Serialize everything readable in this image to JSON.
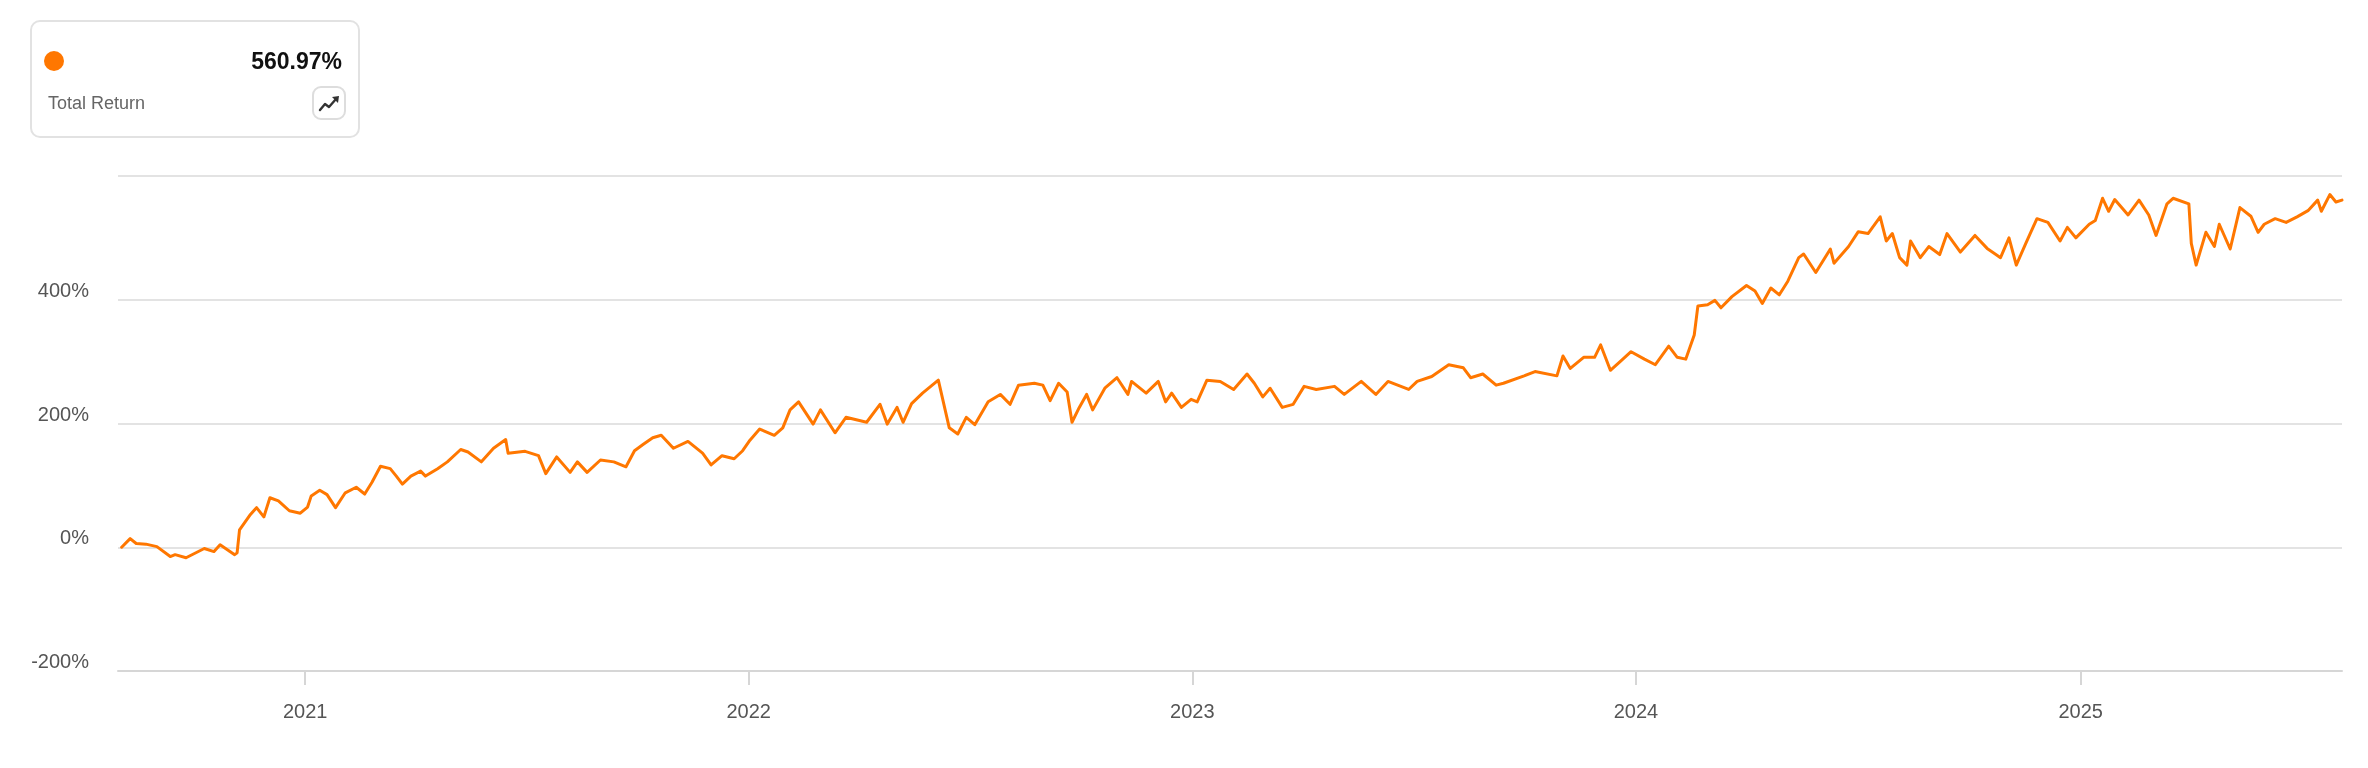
{
  "chart_data": {
    "type": "line",
    "color": "#ff7700",
    "annotations": [
      "560.97%",
      "Total Return"
    ],
    "xlim": [
      "2020-07-31",
      "2025-08-04"
    ],
    "xticks": [
      {
        "value": "2021-01-01",
        "label": "2021"
      },
      {
        "value": "2022-01-01",
        "label": "2022"
      },
      {
        "value": "2023-01-01",
        "label": "2023"
      },
      {
        "value": "2024-01-01",
        "label": "2024"
      },
      {
        "value": "2025-01-01",
        "label": "2025"
      }
    ],
    "ylim": [
      -200,
      600
    ],
    "yticks": [
      {
        "value": -200,
        "label": "-200%"
      },
      {
        "value": 0,
        "label": "0%"
      },
      {
        "value": 200,
        "label": "200%"
      },
      {
        "value": 400,
        "label": "400%"
      },
      {
        "value": 600,
        "label": null
      }
    ],
    "grid": "y",
    "x": [
      "2020-08-03",
      "2020-08-10",
      "2020-08-15",
      "2020-08-23",
      "2020-09-01",
      "2020-09-12",
      "2020-09-16",
      "2020-09-25",
      "2020-10-10",
      "2020-10-18",
      "2020-10-23",
      "2020-11-04",
      "2020-11-06",
      "2020-11-08",
      "2020-11-17",
      "2020-11-22",
      "2020-11-28",
      "2020-12-03",
      "2020-12-10",
      "2020-12-19",
      "2020-12-28",
      "2021-01-03",
      "2021-01-06",
      "2021-01-13",
      "2021-01-19",
      "2021-01-26",
      "2021-02-03",
      "2021-02-12",
      "2021-02-19",
      "2021-02-25",
      "2021-03-04",
      "2021-03-12",
      "2021-03-17",
      "2021-03-22",
      "2021-03-29",
      "2021-04-06",
      "2021-04-10",
      "2021-04-20",
      "2021-04-28",
      "2021-05-09",
      "2021-05-15",
      "2021-05-26",
      "2021-06-05",
      "2021-06-15",
      "2021-06-17",
      "2021-07-01",
      "2021-07-12",
      "2021-07-18",
      "2021-07-27",
      "2021-08-07",
      "2021-08-13",
      "2021-08-21",
      "2021-09-01",
      "2021-09-12",
      "2021-09-22",
      "2021-09-29",
      "2021-10-06",
      "2021-10-14",
      "2021-10-21",
      "2021-10-31",
      "2021-11-12",
      "2021-11-24",
      "2021-12-01",
      "2021-12-10",
      "2021-12-20",
      "2021-12-27",
      "2022-01-02",
      "2022-01-10",
      "2022-01-22",
      "2022-01-29",
      "2022-02-04",
      "2022-02-11",
      "2022-02-23",
      "2022-03-01",
      "2022-03-13",
      "2022-03-22",
      "2022-04-08",
      "2022-04-19",
      "2022-04-25",
      "2022-05-03",
      "2022-05-08",
      "2022-05-15",
      "2022-05-24",
      "2022-06-01",
      "2022-06-06",
      "2022-06-15",
      "2022-06-22",
      "2022-06-29",
      "2022-07-06",
      "2022-07-17",
      "2022-07-27",
      "2022-08-04",
      "2022-08-11",
      "2022-08-24",
      "2022-08-31",
      "2022-09-06",
      "2022-09-13",
      "2022-09-20",
      "2022-09-24",
      "2022-09-30",
      "2022-10-06",
      "2022-10-11",
      "2022-10-21",
      "2022-10-31",
      "2022-11-09",
      "2022-11-12",
      "2022-11-24",
      "2022-12-04",
      "2022-12-10",
      "2022-12-15",
      "2022-12-23",
      "2022-12-31",
      "2023-01-05",
      "2023-01-13",
      "2023-01-24",
      "2023-02-04",
      "2023-02-15",
      "2023-02-21",
      "2023-02-28",
      "2023-03-06",
      "2023-03-16",
      "2023-03-25",
      "2023-04-03",
      "2023-04-13",
      "2023-04-28",
      "2023-05-06",
      "2023-05-20",
      "2023-06-01",
      "2023-06-11",
      "2023-06-28",
      "2023-07-05",
      "2023-07-17",
      "2023-07-31",
      "2023-08-12",
      "2023-08-18",
      "2023-08-28",
      "2023-09-08",
      "2023-09-14",
      "2023-10-01",
      "2023-10-10",
      "2023-10-28",
      "2023-11-02",
      "2023-11-08",
      "2023-11-19",
      "2023-11-28",
      "2023-12-03",
      "2023-12-11",
      "2023-12-19",
      "2023-12-28",
      "2024-01-08",
      "2024-01-17",
      "2024-01-28",
      "2024-02-04",
      "2024-02-11",
      "2024-02-18",
      "2024-02-21",
      "2024-02-29",
      "2024-03-06",
      "2024-03-11",
      "2024-03-20",
      "2024-04-01",
      "2024-04-08",
      "2024-04-14",
      "2024-04-21",
      "2024-04-28",
      "2024-05-05",
      "2024-05-14",
      "2024-05-18",
      "2024-05-28",
      "2024-06-09",
      "2024-06-12",
      "2024-06-24",
      "2024-07-02",
      "2024-07-10",
      "2024-07-20",
      "2024-07-25",
      "2024-07-30",
      "2024-08-05",
      "2024-08-11",
      "2024-08-14",
      "2024-08-22",
      "2024-08-29",
      "2024-09-07",
      "2024-09-13",
      "2024-09-24",
      "2024-10-06",
      "2024-10-16",
      "2024-10-27",
      "2024-11-03",
      "2024-11-09",
      "2024-11-17",
      "2024-11-26",
      "2024-12-05",
      "2024-12-15",
      "2024-12-21",
      "2024-12-28",
      "2025-01-08",
      "2025-01-13",
      "2025-01-19",
      "2025-01-24",
      "2025-01-29",
      "2025-02-09",
      "2025-02-18",
      "2025-02-26",
      "2025-03-04",
      "2025-03-13",
      "2025-03-18",
      "2025-03-31",
      "2025-04-02",
      "2025-04-06",
      "2025-04-14",
      "2025-04-21",
      "2025-04-25",
      "2025-05-04",
      "2025-05-12",
      "2025-05-21",
      "2025-05-27",
      "2025-06-01",
      "2025-06-10",
      "2025-06-19",
      "2025-06-28",
      "2025-07-07",
      "2025-07-15",
      "2025-07-18",
      "2025-07-25",
      "2025-07-30",
      "2025-08-04"
    ],
    "values": [
      0,
      14,
      6,
      5,
      1,
      -15,
      -12,
      -17,
      -2,
      -7,
      4,
      -12,
      -9,
      28,
      53,
      64,
      49,
      80,
      75,
      59,
      55,
      65,
      83,
      92,
      85,
      64,
      88,
      97,
      86,
      105,
      131,
      127,
      115,
      102,
      115,
      123,
      115,
      127,
      138,
      158,
      154,
      138,
      160,
      174,
      152,
      155,
      148,
      119,
      146,
      121,
      138,
      121,
      141,
      138,
      130,
      156,
      166,
      177,
      181,
      160,
      171,
      152,
      133,
      148,
      143,
      156,
      173,
      191,
      181,
      193,
      222,
      235,
      199,
      222,
      185,
      210,
      202,
      231,
      199,
      226,
      202,
      232,
      249,
      262,
      270,
      193,
      183,
      210,
      198,
      235,
      247,
      231,
      262,
      265,
      262,
      237,
      265,
      251,
      202,
      226,
      247,
      222,
      257,
      274,
      247,
      268,
      249,
      268,
      235,
      249,
      226,
      239,
      235,
      270,
      268,
      255,
      280,
      265,
      243,
      257,
      226,
      231,
      260,
      255,
      260,
      247,
      268,
      247,
      268,
      255,
      268,
      276,
      295,
      290,
      274,
      280,
      262,
      265,
      277,
      284,
      277,
      309,
      289,
      307,
      307,
      327,
      286,
      300,
      316,
      304,
      295,
      325,
      307,
      304,
      343,
      390,
      392,
      399,
      387,
      405,
      423,
      414,
      394,
      419,
      408,
      430,
      468,
      474,
      444,
      482,
      459,
      486,
      510,
      507,
      534,
      495,
      507,
      468,
      456,
      495,
      468,
      486,
      473,
      507,
      477,
      504,
      483,
      468,
      500,
      456,
      492,
      531,
      525,
      495,
      517,
      500,
      522,
      528,
      564,
      543,
      562,
      537,
      561,
      537,
      504,
      555,
      564,
      555,
      491,
      456,
      509,
      486,
      522,
      482,
      549,
      535,
      509,
      522,
      531,
      525,
      534,
      544,
      561,
      543,
      570,
      558,
      561
    ]
  }
}
